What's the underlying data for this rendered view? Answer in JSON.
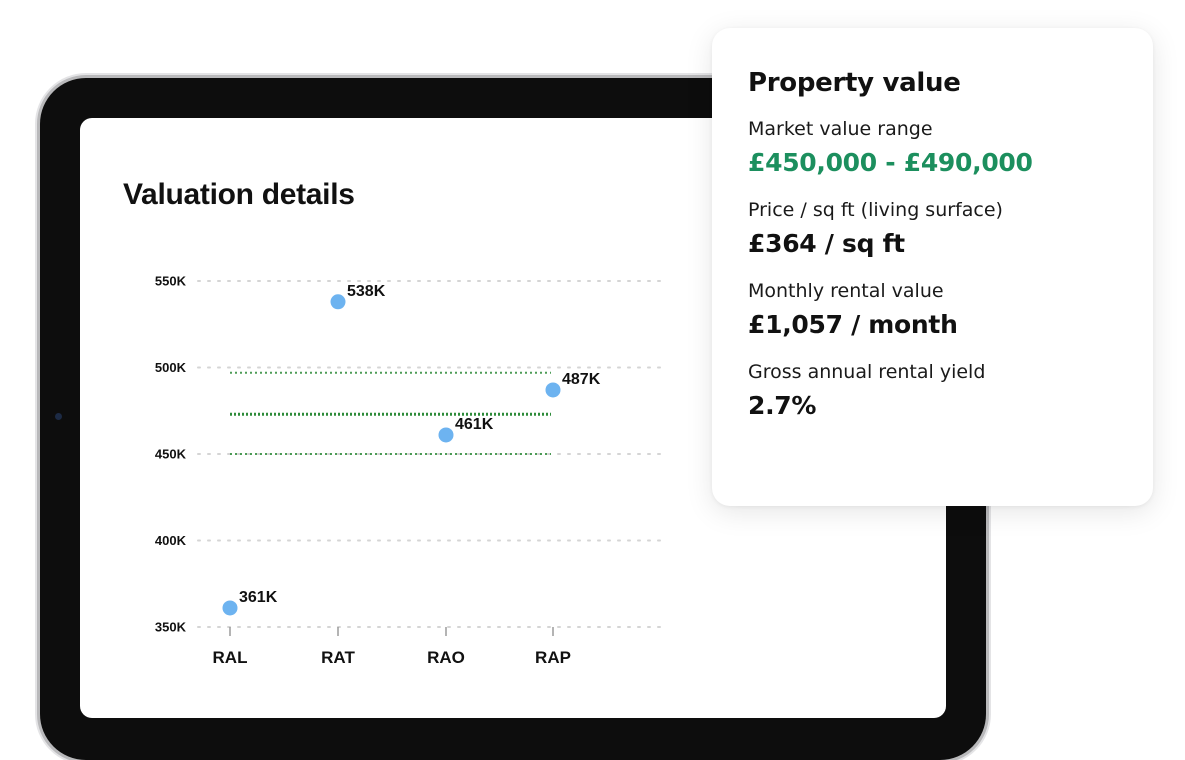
{
  "chart_section": {
    "title": "Valuation details"
  },
  "chart_data": {
    "type": "scatter",
    "title": "Valuation details",
    "categories": [
      "RAL",
      "RAT",
      "RAO",
      "RAP"
    ],
    "values": [
      361,
      538,
      461,
      487
    ],
    "data_labels": [
      "361K",
      "538K",
      "461K",
      "487K"
    ],
    "y_ticks": [
      350,
      400,
      450,
      500,
      550
    ],
    "y_tick_labels": [
      "350K",
      "400K",
      "450K",
      "500K",
      "550K"
    ],
    "ylim": [
      350,
      550
    ],
    "reference_lines": [
      450,
      473,
      497
    ],
    "grid": true,
    "colors": {
      "point": "#6db3f0",
      "grid": "#d5d5d5",
      "reference": "#2e8b3a"
    }
  },
  "card": {
    "title": "Property value",
    "metrics": [
      {
        "label": "Market value range",
        "value": "£450,000 - £490,000"
      },
      {
        "label": "Price / sq ft (living surface)",
        "value": "£364 / sq ft"
      },
      {
        "label": "Monthly rental value",
        "value": "£1,057 / month"
      },
      {
        "label": "Gross annual rental yield",
        "value": "2.7%"
      }
    ],
    "accent_color": "#1c8f5e"
  }
}
